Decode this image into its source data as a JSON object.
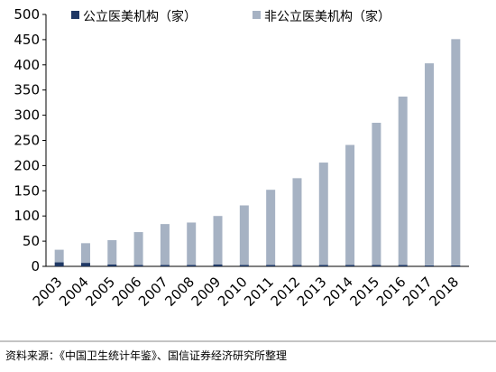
{
  "colors": {
    "public_series": "#1f3864",
    "private_series": "#a6b2c3",
    "axis": "#000000",
    "divider": "#8a8a8a"
  },
  "chart_data": {
    "type": "bar",
    "stacked": true,
    "categories": [
      "2003",
      "2004",
      "2005",
      "2006",
      "2007",
      "2008",
      "2009",
      "2010",
      "2011",
      "2012",
      "2013",
      "2014",
      "2015",
      "2016",
      "2017",
      "2018"
    ],
    "series": [
      {
        "name": "公立医美机构（家）",
        "values": [
          8,
          7,
          4,
          3,
          3,
          3,
          4,
          3,
          3,
          3,
          3,
          3,
          3,
          3,
          2,
          2
        ]
      },
      {
        "name": "非公立医美机构（家）",
        "values": [
          25,
          39,
          48,
          65,
          81,
          84,
          96,
          118,
          149,
          172,
          203,
          238,
          282,
          334,
          401,
          449
        ]
      }
    ],
    "ylim": [
      0,
      500
    ],
    "yticks": [
      0,
      50,
      100,
      150,
      200,
      250,
      300,
      350,
      400,
      450,
      500
    ],
    "grid": false,
    "legend_position": "top"
  },
  "source": {
    "text": "资料来源：《中国卫生统计年鉴》、国信证券经济研究所整理"
  }
}
